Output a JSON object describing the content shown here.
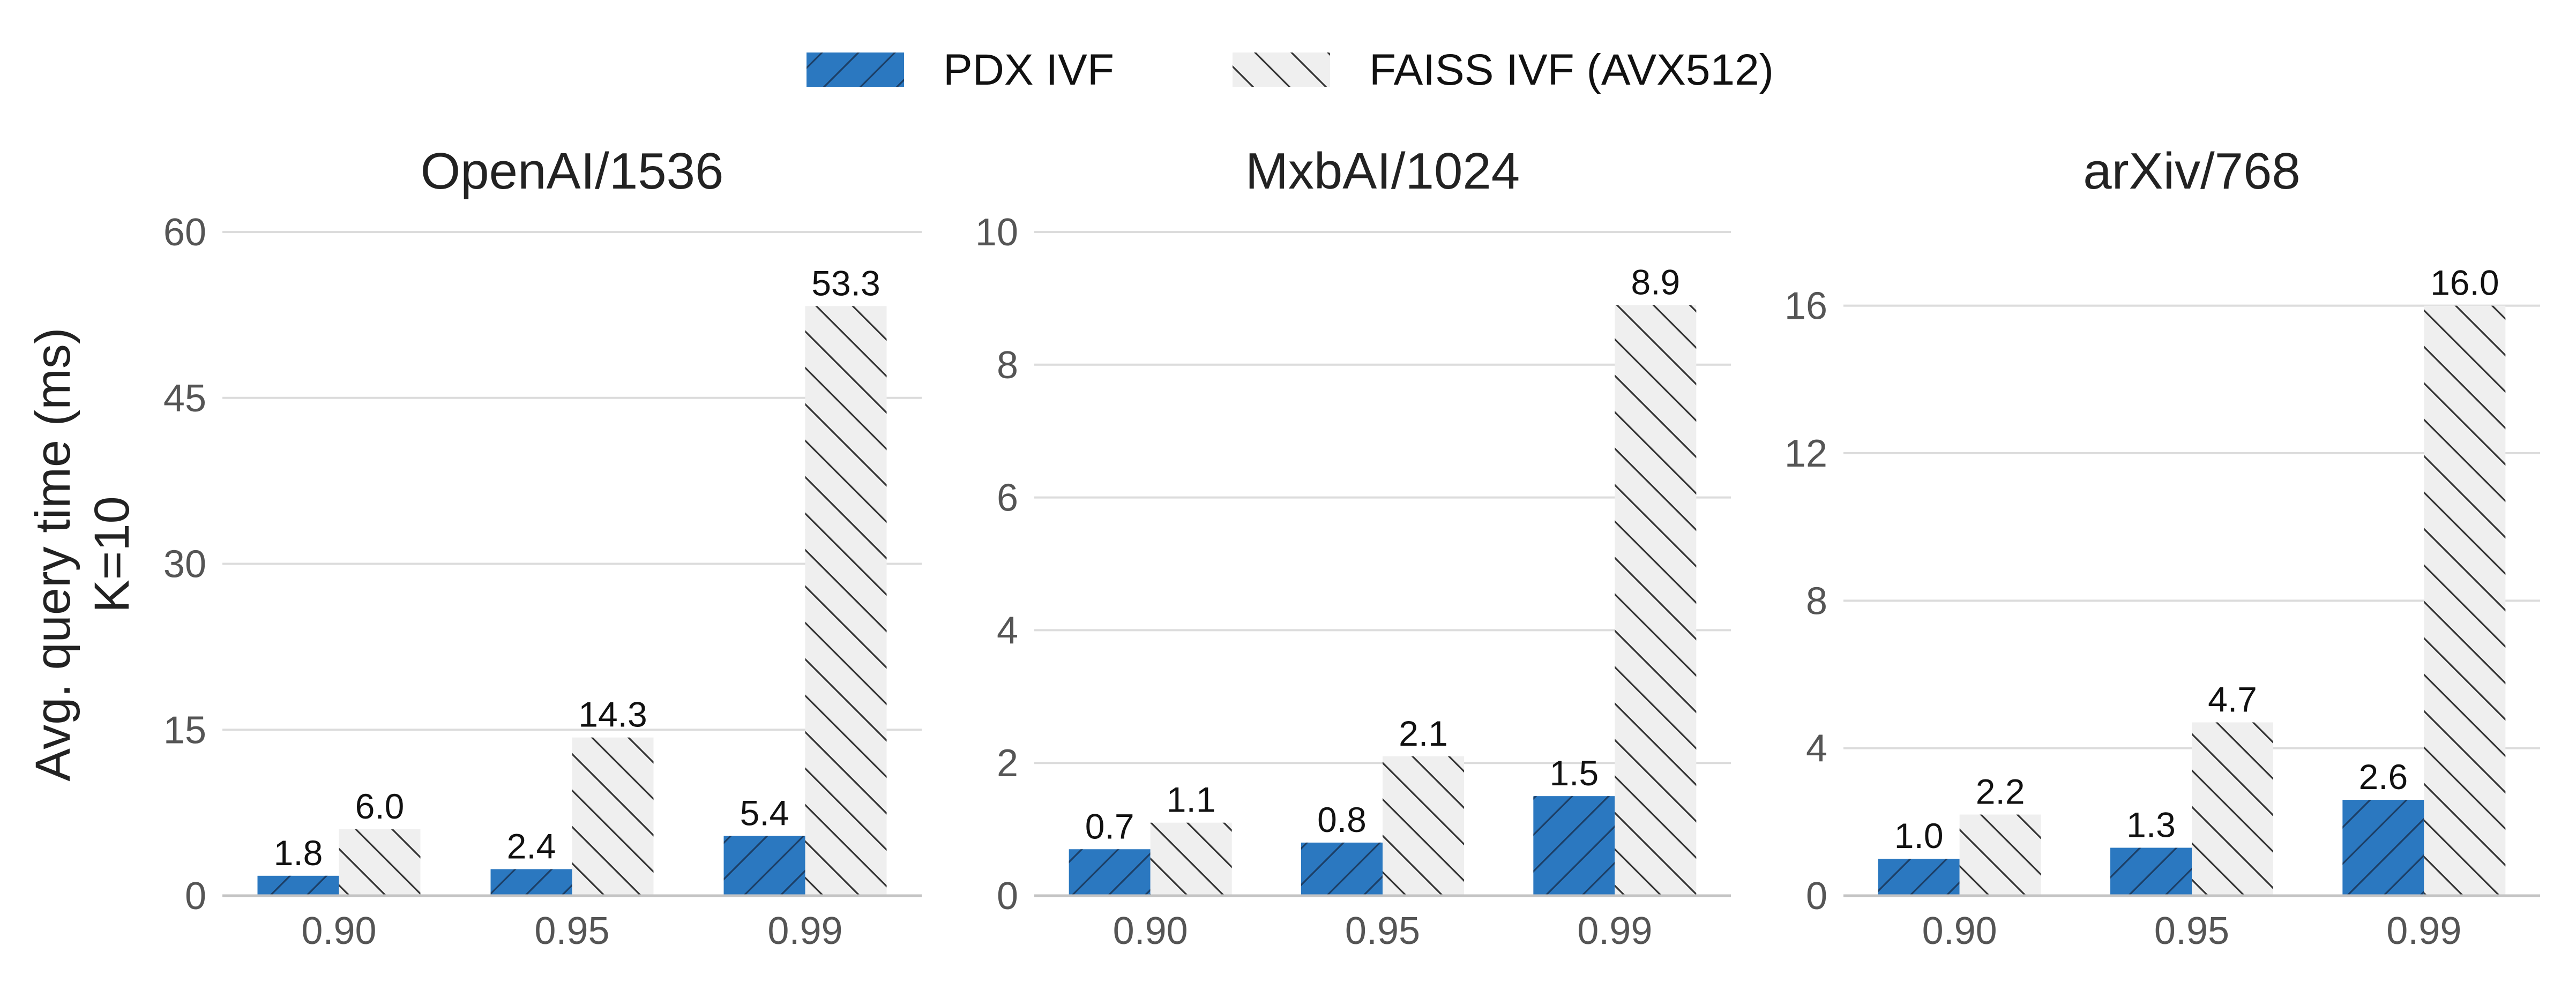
{
  "figure": {
    "ylabel_line1": "Avg. query time (ms)",
    "ylabel_line2": "K=10",
    "colors": {
      "pdx": "#2b78c0",
      "faiss_fill": "#efefef",
      "hatch_dark": "#1c3f66",
      "hatch_light": "#333333"
    }
  },
  "legend": {
    "items": [
      {
        "name": "PDX IVF",
        "color": "#2b78c0",
        "hatch": "forward-slash"
      },
      {
        "name": "FAISS IVF (AVX512)",
        "color": "#efefef",
        "hatch": "back-slash"
      }
    ],
    "placement": "top-center"
  },
  "chart_data": [
    {
      "type": "bar",
      "title": "OpenAI/1536",
      "xlabel": "",
      "ylabel": "Avg. query time (ms) K=10",
      "categories": [
        "0.90",
        "0.95",
        "0.99"
      ],
      "series": [
        {
          "name": "PDX IVF",
          "values": [
            1.8,
            2.4,
            5.4
          ],
          "labels": [
            "1.8",
            "2.4",
            "5.4"
          ]
        },
        {
          "name": "FAISS IVF (AVX512)",
          "values": [
            6.0,
            14.3,
            53.3
          ],
          "labels": [
            "6.0",
            "14.3",
            "53.3"
          ]
        }
      ],
      "ylim": [
        0,
        60
      ],
      "yticks": [
        0,
        15,
        30,
        45,
        60
      ],
      "grid": true
    },
    {
      "type": "bar",
      "title": "MxbAI/1024",
      "xlabel": "",
      "ylabel": "",
      "categories": [
        "0.90",
        "0.95",
        "0.99"
      ],
      "series": [
        {
          "name": "PDX IVF",
          "values": [
            0.7,
            0.8,
            1.5
          ],
          "labels": [
            "0.7",
            "0.8",
            "1.5"
          ]
        },
        {
          "name": "FAISS IVF (AVX512)",
          "values": [
            1.1,
            2.1,
            8.9
          ],
          "labels": [
            "1.1",
            "2.1",
            "8.9"
          ]
        }
      ],
      "ylim": [
        0,
        10
      ],
      "yticks": [
        0,
        2,
        4,
        6,
        8,
        10
      ],
      "grid": true
    },
    {
      "type": "bar",
      "title": "arXiv/768",
      "xlabel": "",
      "ylabel": "",
      "categories": [
        "0.90",
        "0.95",
        "0.99"
      ],
      "series": [
        {
          "name": "PDX IVF",
          "values": [
            1.0,
            1.3,
            2.6
          ],
          "labels": [
            "1.0",
            "1.3",
            "2.6"
          ]
        },
        {
          "name": "FAISS IVF (AVX512)",
          "values": [
            2.2,
            4.7,
            16.0
          ],
          "labels": [
            "2.2",
            "4.7",
            "16.0"
          ]
        }
      ],
      "ylim": [
        0,
        18
      ],
      "yticks": [
        0,
        4,
        8,
        12,
        16
      ],
      "grid": true
    }
  ]
}
